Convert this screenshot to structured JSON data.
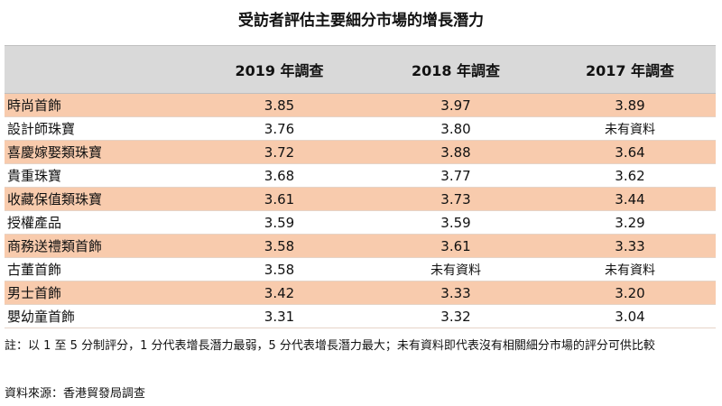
{
  "title": "受訪者評估主要細分市場的增長潛力",
  "table": {
    "headers": [
      "",
      "2019 年調查",
      "2018 年調查",
      "2017 年調查"
    ],
    "rows": [
      {
        "category": "時尚首飾",
        "y2019": "3.85",
        "y2018": "3.97",
        "y2017": "3.89"
      },
      {
        "category": "設計師珠寶",
        "y2019": "3.76",
        "y2018": "3.80",
        "y2017": "未有資料"
      },
      {
        "category": "喜慶嫁娶類珠寶",
        "y2019": "3.72",
        "y2018": "3.88",
        "y2017": "3.64"
      },
      {
        "category": "貴重珠寶",
        "y2019": "3.68",
        "y2018": "3.77",
        "y2017": "3.62"
      },
      {
        "category": "收藏保值類珠寶",
        "y2019": "3.61",
        "y2018": "3.73",
        "y2017": "3.44"
      },
      {
        "category": "授權產品",
        "y2019": "3.59",
        "y2018": "3.59",
        "y2017": "3.29"
      },
      {
        "category": "商務送禮類首飾",
        "y2019": "3.58",
        "y2018": "3.61",
        "y2017": "3.33"
      },
      {
        "category": "古董首飾",
        "y2019": "3.58",
        "y2018": "未有資料",
        "y2017": "未有資料"
      },
      {
        "category": "男士首飾",
        "y2019": "3.42",
        "y2018": "3.33",
        "y2017": "3.20"
      },
      {
        "category": "嬰幼童首飾",
        "y2019": "3.31",
        "y2018": "3.32",
        "y2017": "3.04"
      }
    ]
  },
  "note": "註：以 1 至 5 分制評分，1 分代表增長潛力最弱，5 分代表增長潛力最大；未有資料即代表沒有相關細分市場的評分可供比較",
  "source": "資料來源：香港貿發局調查",
  "colors": {
    "header_bg": "#d9d9d9",
    "odd_row_bg": "#f8cbad",
    "even_row_bg": "#ffffff"
  }
}
